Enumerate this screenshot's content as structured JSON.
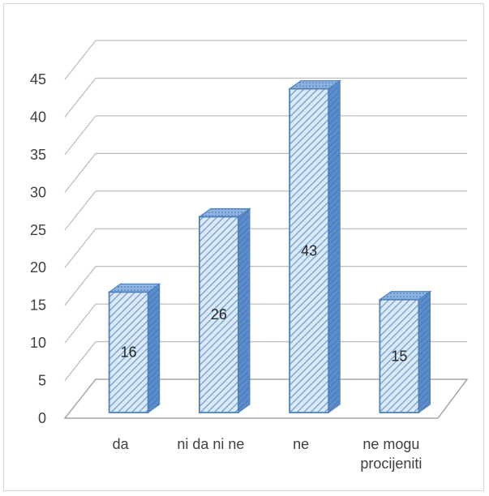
{
  "chart_data": {
    "type": "bar",
    "style": "3d-clustered-column",
    "categories": [
      [
        "da"
      ],
      [
        "ni da ni ne"
      ],
      [
        "ne"
      ],
      [
        "ne mogu",
        "procijeniti"
      ]
    ],
    "values": [
      16,
      26,
      43,
      15
    ],
    "data_labels": [
      "16",
      "26",
      "43",
      "15"
    ],
    "ylim": [
      0,
      45
    ],
    "yticks": [
      "0",
      "5",
      "10",
      "15",
      "20",
      "25",
      "30",
      "35",
      "40",
      "45"
    ],
    "grid": true,
    "legend": "none",
    "colors": {
      "bar_fill": "#dce9f7",
      "bar_hatch": "#6f9fd4",
      "bar_edge": "#4f81bd",
      "bar_side": "#5b8ccc",
      "bar_top": "#8fb3e0",
      "gridline": "#bfbfbf",
      "floor": "#a6a6a6",
      "text": "#404040"
    }
  }
}
